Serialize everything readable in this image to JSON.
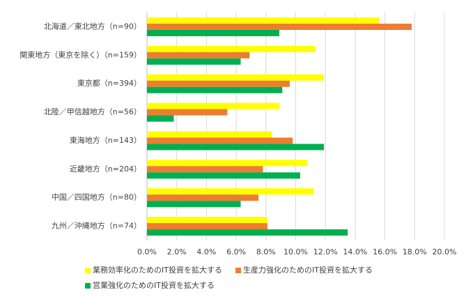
{
  "chart_data": {
    "type": "hbar",
    "categories": [
      "北海道／東北地方（n=90）",
      "関東地方（東京を除く）（n=159）",
      "東京都（n=394）",
      "北陸／甲信越地方（n=56）",
      "東海地方（n=143）",
      "近畿地方（n=204）",
      "中国／四国地方（n=80）",
      "九州／沖縄地方（n=74）"
    ],
    "series": [
      {
        "name": "業務効率化のためのIT投資を拡大する",
        "color": "#ffff00",
        "values": [
          15.6,
          11.3,
          11.9,
          8.9,
          8.4,
          10.8,
          11.2,
          8.1
        ]
      },
      {
        "name": "生産力強化のためのIT投資を拡大する",
        "color": "#ed7d31",
        "values": [
          17.8,
          6.9,
          9.6,
          5.4,
          9.8,
          7.8,
          7.5,
          8.1
        ]
      },
      {
        "name": "営業強化のためのIT投資を拡大する",
        "color": "#00b050",
        "values": [
          8.9,
          6.3,
          9.1,
          1.8,
          11.9,
          10.3,
          6.3,
          13.5
        ]
      }
    ],
    "xlim": [
      0,
      20
    ],
    "xticks": [
      {
        "value": 0,
        "label": "0.0%"
      },
      {
        "value": 2,
        "label": "2.0%"
      },
      {
        "value": 4,
        "label": "4.0%"
      },
      {
        "value": 6,
        "label": "6.0%"
      },
      {
        "value": 8,
        "label": "8.0%"
      },
      {
        "value": 10,
        "label": "10.0%"
      },
      {
        "value": 12,
        "label": "12.0%"
      },
      {
        "value": 14,
        "label": "14.0%"
      },
      {
        "value": 16,
        "label": "16.0%"
      },
      {
        "value": 18,
        "label": "18.0%"
      },
      {
        "value": 20,
        "label": "20.0%"
      }
    ],
    "grid": true
  }
}
